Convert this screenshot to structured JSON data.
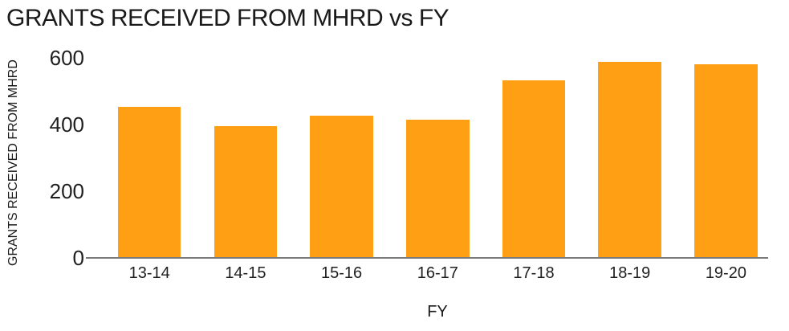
{
  "page": {
    "title": "GRANTS RECEIVED FROM MHRD vs FY"
  },
  "chart_data": {
    "type": "bar",
    "title": "GRANTS RECEIVED FROM MHRD vs FY",
    "xlabel": "FY",
    "ylabel": "GRANTS RECEIVED FROM MHRD",
    "categories": [
      "13-14",
      "14-15",
      "15-16",
      "16-17",
      "17-18",
      "18-19",
      "19-20"
    ],
    "values": [
      453,
      394,
      426,
      413,
      532,
      587,
      580
    ],
    "ylim": [
      0,
      600
    ],
    "yticks": [
      0,
      200,
      400,
      600
    ],
    "legend_position": "none",
    "grid": false,
    "colors": {
      "bar": "#FFA014",
      "axis_line": "#7a7a7a",
      "text": "#1a1a1a",
      "background": "#ffffff"
    }
  }
}
